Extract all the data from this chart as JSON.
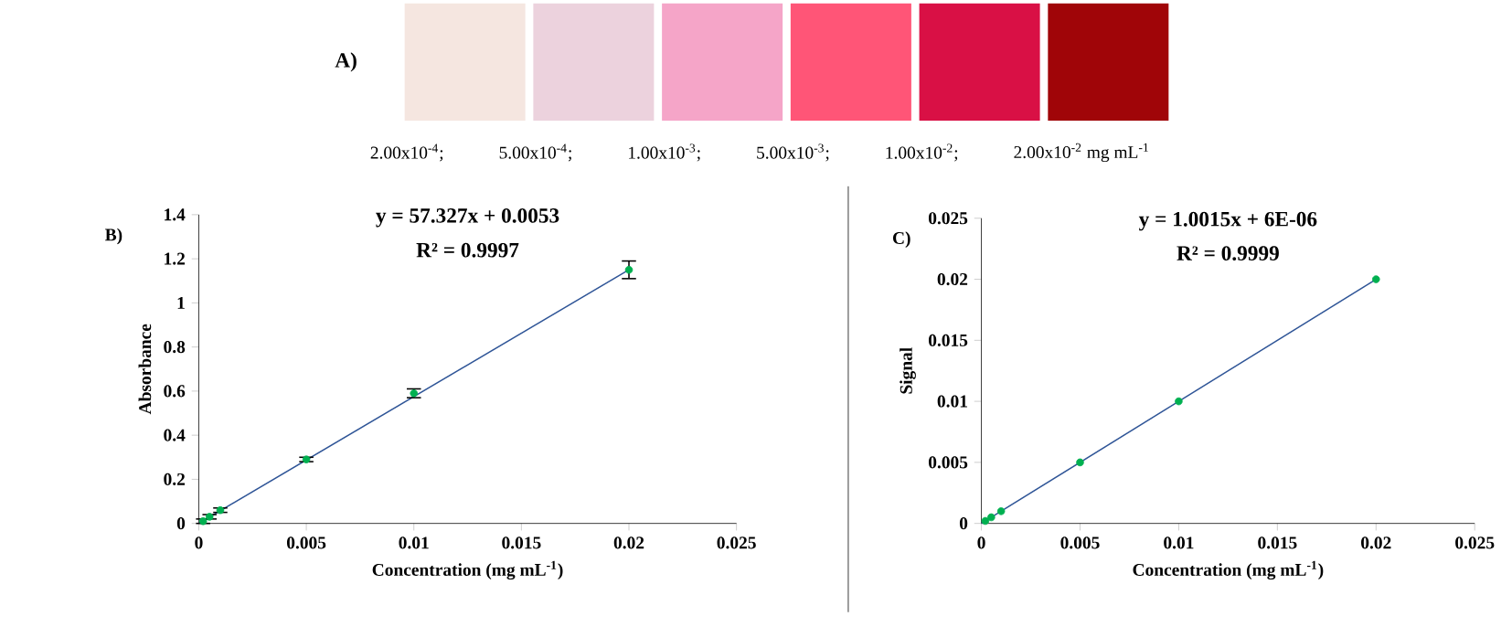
{
  "chart_data": [
    {
      "type": "other",
      "title": "A)",
      "annotations": [
        "2.00x10$^{-4}$;",
        "5.00x10$^{-4}$;",
        "1.00x10$^{-3}$;",
        "5.00x10$^{-3}$;",
        "1.00x10$^{-2}$;",
        "2.00x10$^{-2}$ mg mL$^{-1}$"
      ],
      "colors": [
        "#f5e6e0",
        "#ecd2dd",
        "#f5a5c8",
        "#ff5577",
        "#d91045",
        "#a00508"
      ]
    },
    {
      "type": "scatter",
      "title": "B)",
      "xlabel": "Concentration (mg mL$^{-1}$)",
      "ylabel": "Absorbance",
      "xlim": [
        0,
        0.025
      ],
      "xticks": [
        0,
        0.005,
        0.01,
        0.015,
        0.02,
        0.025
      ],
      "ylim": [
        0,
        1.4
      ],
      "yticks": [
        0,
        0.2,
        0.4,
        0.6,
        0.8,
        1,
        1.2,
        1.4
      ],
      "annotations": [
        "y = 57.327x + 0.0053",
        "R² = 0.9997"
      ],
      "series": [
        {
          "type": "line",
          "marker": "none",
          "color": "#2f5597",
          "x": [
            0,
            0.02
          ],
          "values": [
            0,
            1.15
          ]
        },
        {
          "type": "scatter",
          "marker": "circle",
          "color": "#00b050",
          "x": [
            0.0002,
            0.0005,
            0.001,
            0.005,
            0.01,
            0.02
          ],
          "values": [
            0.01,
            0.03,
            0.06,
            0.29,
            0.59,
            1.15
          ],
          "errors": [
            0.01,
            0.01,
            0.01,
            0.01,
            0.02,
            0.04
          ]
        }
      ]
    },
    {
      "type": "scatter",
      "title": "C)",
      "xlabel": "Concentration (mg mL$^{-1}$)",
      "ylabel": "Signal",
      "xlim": [
        0,
        0.025
      ],
      "xticks": [
        0,
        0.005,
        0.01,
        0.015,
        0.02,
        0.025
      ],
      "ylim": [
        0,
        0.025
      ],
      "yticks": [
        0,
        0.005,
        0.01,
        0.015,
        0.02,
        0.025
      ],
      "annotations": [
        "y = 1.0015x + 6E-06",
        "R² = 0.9999"
      ],
      "series": [
        {
          "type": "line",
          "marker": "none",
          "color": "#2f5597",
          "x": [
            0,
            0.02
          ],
          "values": [
            0,
            0.02
          ]
        },
        {
          "type": "scatter",
          "marker": "circle",
          "color": "#00b050",
          "x": [
            0.0002,
            0.0005,
            0.001,
            0.005,
            0.01,
            0.02
          ],
          "values": [
            0.0002,
            0.0005,
            0.001,
            0.005,
            0.01,
            0.02
          ]
        }
      ]
    }
  ]
}
